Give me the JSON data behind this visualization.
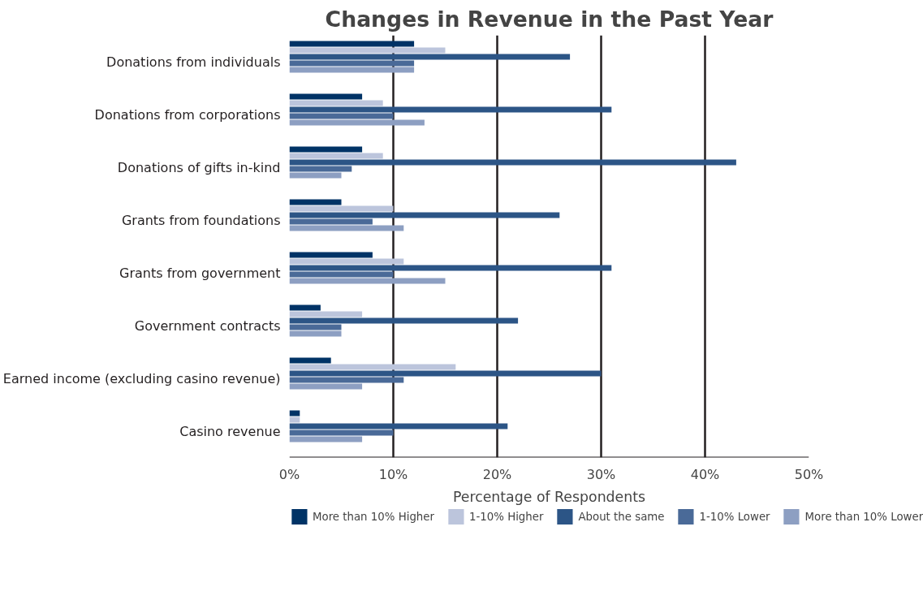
{
  "chart_data": {
    "type": "bar",
    "orientation": "horizontal",
    "title": "Changes in Revenue in the Past Year",
    "xlabel": "Percentage of Respondents",
    "categories": [
      "Donations from individuals",
      "Donations from corporations",
      "Donations of gifts in-kind",
      "Grants from foundations",
      "Grants from government",
      "Government contracts",
      "Earned income (excluding casino revenue)",
      "Casino revenue"
    ],
    "series": [
      {
        "name": "More than 10% Higher",
        "color": "#003366",
        "values": [
          12,
          7,
          7,
          5,
          8,
          3,
          4,
          1
        ]
      },
      {
        "name": "1-10% Higher",
        "color": "#bcc5dc",
        "values": [
          15,
          9,
          9,
          10,
          11,
          7,
          16,
          1
        ]
      },
      {
        "name": "About the same",
        "color": "#2c5586",
        "values": [
          27,
          31,
          43,
          26,
          31,
          22,
          30,
          21
        ]
      },
      {
        "name": "1-10% Lower",
        "color": "#4a6a98",
        "values": [
          12,
          10,
          6,
          8,
          10,
          5,
          11,
          10
        ]
      },
      {
        "name": "More than 10% Lower",
        "color": "#8d9fc2",
        "values": [
          12,
          13,
          5,
          11,
          15,
          5,
          7,
          7
        ]
      }
    ],
    "xlim": [
      0,
      50
    ],
    "xticks": [
      {
        "value": 0,
        "label": "0%"
      },
      {
        "value": 10,
        "label": "10%"
      },
      {
        "value": 20,
        "label": "20%"
      },
      {
        "value": 30,
        "label": "30%"
      },
      {
        "value": 40,
        "label": "40%"
      },
      {
        "value": 50,
        "label": "50%"
      }
    ],
    "grid": "x",
    "legend": "bottom"
  }
}
